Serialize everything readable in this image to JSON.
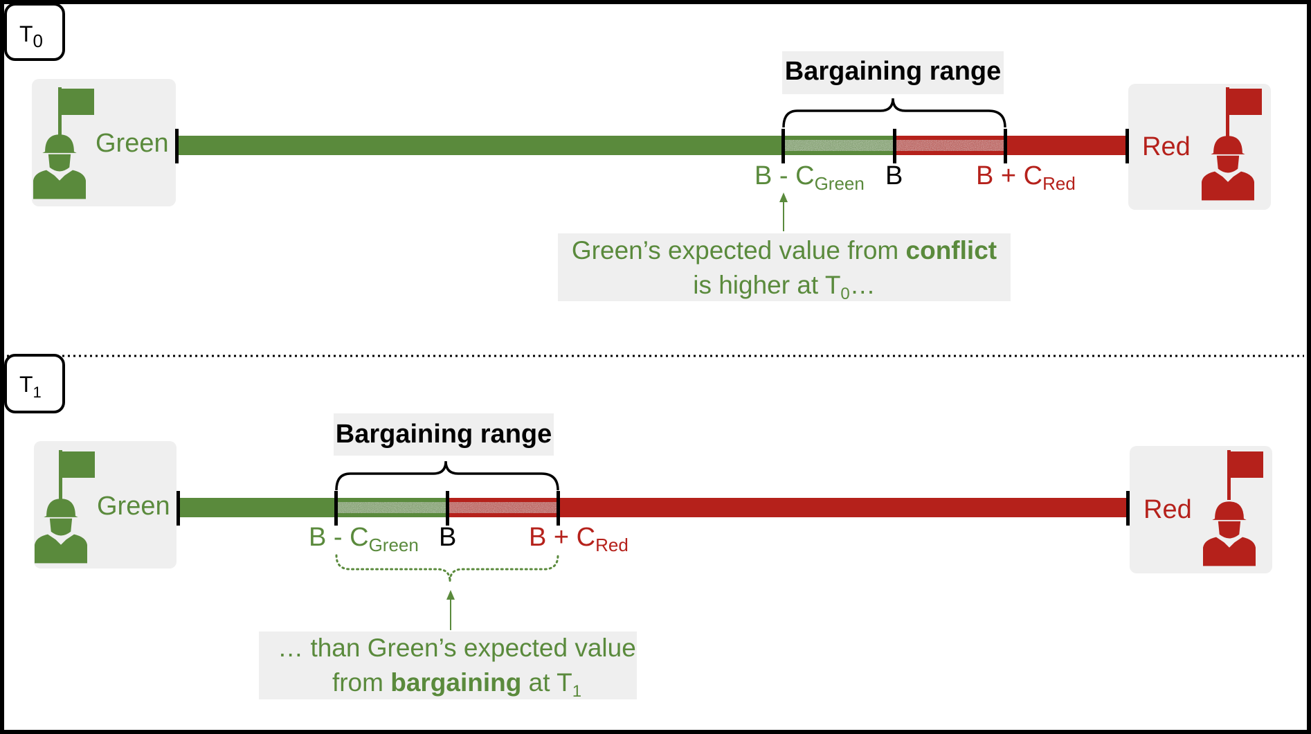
{
  "colors": {
    "green": "#5a8a3c",
    "red": "#b5211b",
    "black": "#000000",
    "panel_gray": "#efefef",
    "range_gray": "#a8a8a8"
  },
  "panels": [
    {
      "period": {
        "main": "T",
        "sub": "0"
      },
      "left_actor": {
        "name": "Green",
        "icon": "soldier-flag-icon"
      },
      "right_actor": {
        "name": "Red",
        "icon": "soldier-flag-icon"
      },
      "bargaining_title": "Bargaining range",
      "markers": {
        "left": {
          "main": "B - C",
          "sub": "Green"
        },
        "mid": {
          "main": "B"
        },
        "right": {
          "main": "B + C",
          "sub": "Red"
        }
      },
      "note": {
        "line1_pre": "Green’s expected value from ",
        "line1_bold": "conflict",
        "line2_pre": "is higher at T",
        "line2_sub": "0",
        "line2_post": "…"
      }
    },
    {
      "period": {
        "main": "T",
        "sub": "1"
      },
      "left_actor": {
        "name": "Green",
        "icon": "soldier-flag-icon"
      },
      "right_actor": {
        "name": "Red",
        "icon": "soldier-flag-icon"
      },
      "bargaining_title": "Bargaining range",
      "markers": {
        "left": {
          "main": "B - C",
          "sub": "Green"
        },
        "mid": {
          "main": "B"
        },
        "right": {
          "main": "B + C",
          "sub": "Red"
        }
      },
      "note": {
        "line1_pre": "… than Green’s expected value",
        "line2_pre": "from ",
        "line2_bold": "bargaining",
        "line2_mid": " at T",
        "line2_sub": "1"
      }
    }
  ]
}
